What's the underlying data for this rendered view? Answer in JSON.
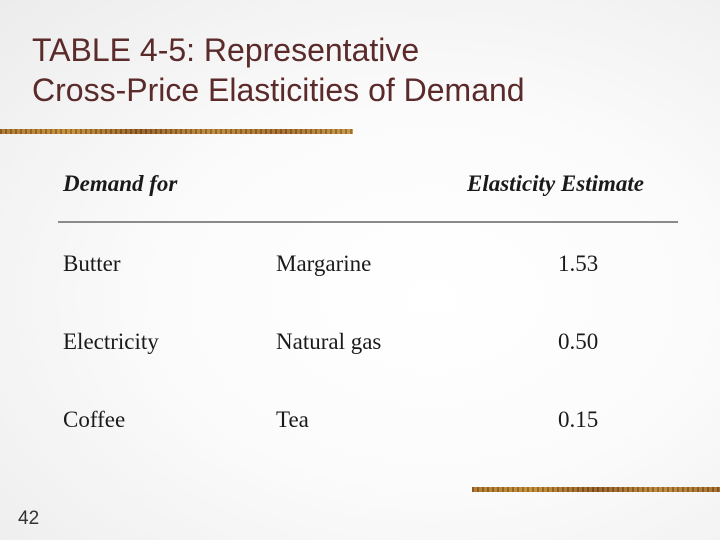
{
  "slide": {
    "title_line1": "TABLE 4-5: Representative",
    "title_line2": "Cross-Price Elasticities of Demand",
    "page_number": "42"
  },
  "table": {
    "header_left": "Demand for",
    "header_right": "Elasticity Estimate",
    "rows": [
      {
        "good": "Butter",
        "related": "Margarine",
        "estimate": "1.53"
      },
      {
        "good": "Electricity",
        "related": "Natural gas",
        "estimate": "0.50"
      },
      {
        "good": "Coffee",
        "related": "Tea",
        "estimate": "0.15"
      }
    ]
  },
  "colors": {
    "title": "#5b2a2a",
    "accent_bar": "#a7762d",
    "text": "#1a1a1a"
  }
}
